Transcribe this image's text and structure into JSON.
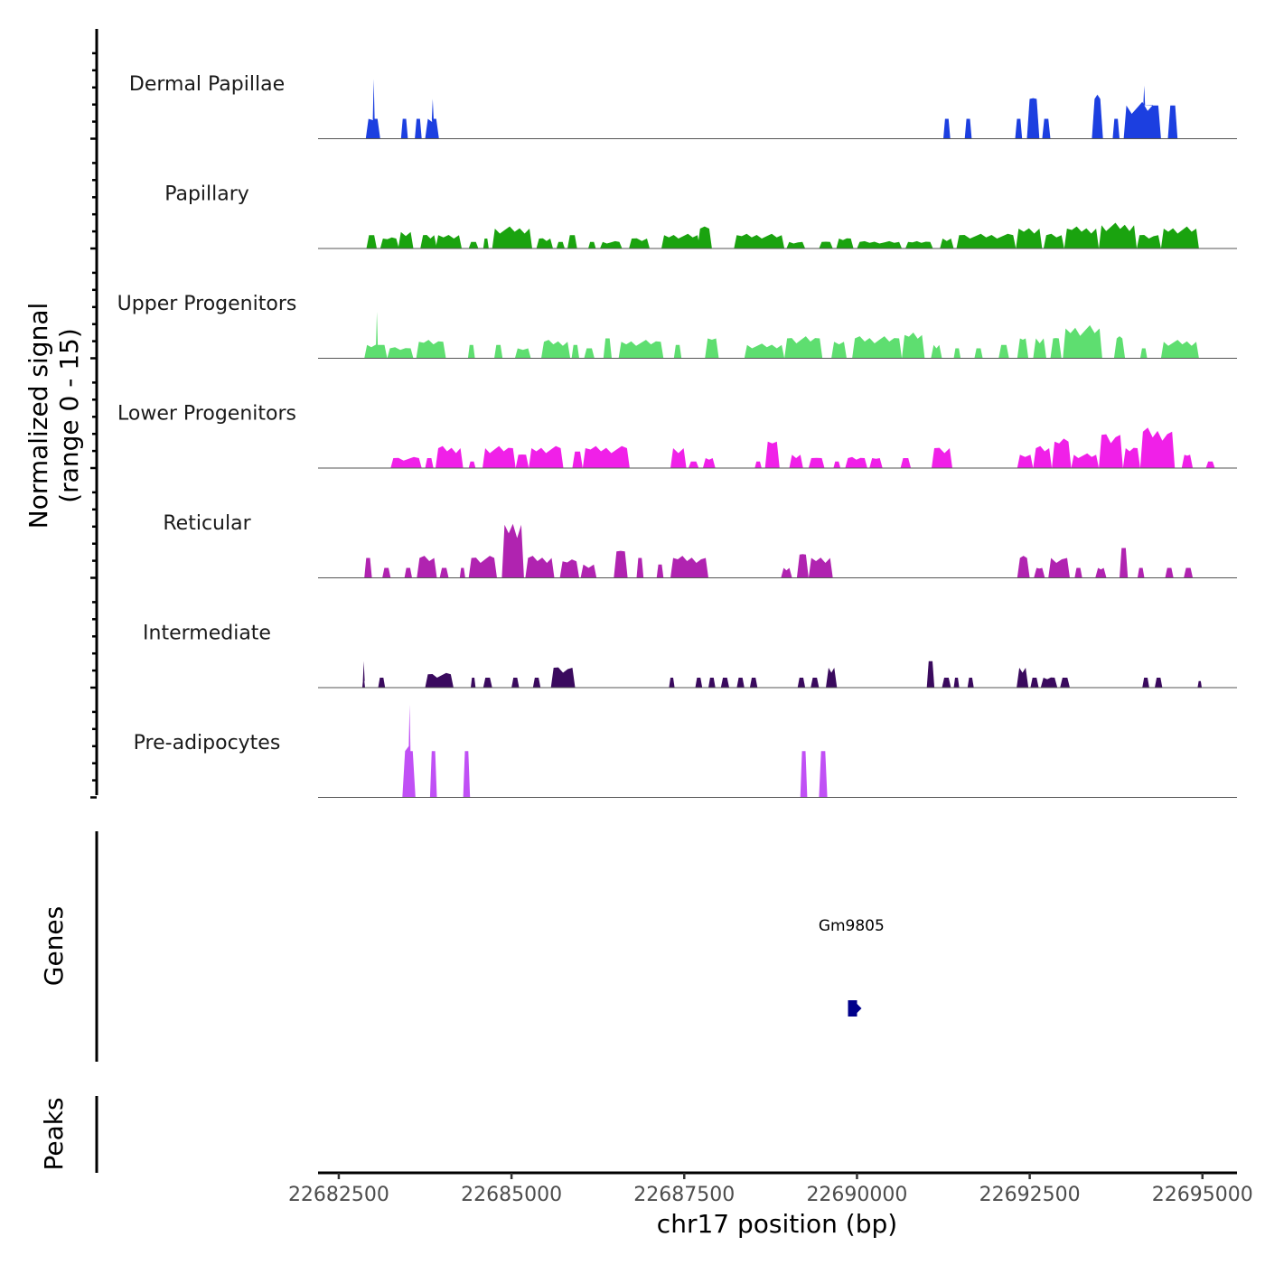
{
  "chart_data": {
    "type": "area",
    "title": "",
    "ylabel_line1": "Normalized signal",
    "ylabel_line2": "(range 0 - 15)",
    "ylim": [
      0,
      15
    ],
    "xlabel": "chr17 position (bp)",
    "xlim": [
      22682200,
      22695500
    ],
    "xticks": [
      22682500,
      22685000,
      22687500,
      22690000,
      22692500,
      22695000
    ],
    "xtick_labels": [
      "22682500",
      "22685000",
      "22687500",
      "22690000",
      "22692500",
      "22695000"
    ],
    "tracks": [
      {
        "name": "Dermal Papillae",
        "color": "#1c3fe0",
        "peaks": [
          [
            22682890,
            22683100,
            3,
            9
          ],
          [
            22683400,
            22683500,
            3,
            0
          ],
          [
            22683600,
            22683700,
            3,
            0
          ],
          [
            22683750,
            22683950,
            3,
            6
          ],
          [
            22691250,
            22691350,
            3,
            0
          ],
          [
            22691560,
            22691660,
            3,
            0
          ],
          [
            22692290,
            22692390,
            3,
            0
          ],
          [
            22692460,
            22692640,
            6,
            0
          ],
          [
            22692680,
            22692800,
            3,
            0
          ],
          [
            22693400,
            22693560,
            6,
            0
          ],
          [
            22693700,
            22693800,
            3,
            0
          ],
          [
            22693860,
            22694400,
            5,
            8
          ],
          [
            22694500,
            22694640,
            5,
            0
          ]
        ]
      },
      {
        "name": "Papillary",
        "color": "#1aa30f",
        "peaks": [
          [
            22682900,
            22683050,
            2,
            0
          ],
          [
            22683100,
            22683370,
            1.5,
            0
          ],
          [
            22683360,
            22683580,
            2.5,
            0
          ],
          [
            22683680,
            22683920,
            2,
            0
          ],
          [
            22683900,
            22684280,
            2,
            0
          ],
          [
            22684380,
            22684520,
            1,
            0
          ],
          [
            22684590,
            22684670,
            1.5,
            0
          ],
          [
            22684720,
            22685300,
            3,
            0
          ],
          [
            22685360,
            22685600,
            1.5,
            0
          ],
          [
            22685650,
            22685770,
            1,
            0
          ],
          [
            22685810,
            22685950,
            2,
            0
          ],
          [
            22686110,
            22686220,
            1,
            0
          ],
          [
            22686280,
            22686600,
            1,
            0
          ],
          [
            22686700,
            22687000,
            1.5,
            0
          ],
          [
            22687170,
            22687730,
            2,
            0
          ],
          [
            22687690,
            22687900,
            3,
            0
          ],
          [
            22688220,
            22688950,
            2,
            0
          ],
          [
            22688980,
            22689250,
            1,
            0
          ],
          [
            22689450,
            22689650,
            1,
            0
          ],
          [
            22689700,
            22689950,
            1.5,
            0
          ],
          [
            22690000,
            22690650,
            1,
            0
          ],
          [
            22690700,
            22691100,
            1,
            0
          ],
          [
            22691200,
            22691400,
            1.5,
            0
          ],
          [
            22691440,
            22692300,
            2,
            0
          ],
          [
            22692300,
            22692680,
            3,
            0
          ],
          [
            22692700,
            22693000,
            2,
            0
          ],
          [
            22693000,
            22693500,
            3,
            0
          ],
          [
            22693500,
            22694050,
            3.5,
            0
          ],
          [
            22694050,
            22694400,
            2,
            0
          ],
          [
            22694400,
            22694950,
            3,
            0
          ]
        ]
      },
      {
        "name": "Upper Progenitors",
        "color": "#5ede70",
        "peaks": [
          [
            22682870,
            22683200,
            2,
            7
          ],
          [
            22683200,
            22683580,
            1.5,
            0
          ],
          [
            22683620,
            22684050,
            2.5,
            0
          ],
          [
            22684370,
            22684470,
            2,
            0
          ],
          [
            22684750,
            22684870,
            2,
            0
          ],
          [
            22685050,
            22685280,
            1.5,
            0
          ],
          [
            22685430,
            22685850,
            2.5,
            0
          ],
          [
            22685870,
            22685980,
            2,
            0
          ],
          [
            22686050,
            22686200,
            1.5,
            0
          ],
          [
            22686330,
            22686450,
            3,
            0
          ],
          [
            22686550,
            22687200,
            2.5,
            0
          ],
          [
            22687350,
            22687460,
            2,
            0
          ],
          [
            22687800,
            22688000,
            3,
            0
          ],
          [
            22688370,
            22688950,
            2,
            0
          ],
          [
            22688950,
            22689500,
            3,
            0
          ],
          [
            22689630,
            22689850,
            2.5,
            0
          ],
          [
            22689930,
            22690650,
            3,
            0
          ],
          [
            22690650,
            22690980,
            3.5,
            0
          ],
          [
            22691070,
            22691230,
            2,
            0
          ],
          [
            22691400,
            22691500,
            1.5,
            0
          ],
          [
            22691700,
            22691820,
            1.5,
            0
          ],
          [
            22692050,
            22692200,
            2,
            0
          ],
          [
            22692320,
            22692480,
            3,
            0
          ],
          [
            22692550,
            22692740,
            3,
            0
          ],
          [
            22692800,
            22692960,
            3,
            0
          ],
          [
            22692980,
            22693550,
            4.5,
            0
          ],
          [
            22693720,
            22693880,
            3,
            0
          ],
          [
            22694100,
            22694200,
            1.5,
            0
          ],
          [
            22694400,
            22694950,
            2.5,
            0
          ]
        ]
      },
      {
        "name": "Lower Progenitors",
        "color": "#f020e8",
        "peaks": [
          [
            22683250,
            22683700,
            1.5,
            0
          ],
          [
            22683750,
            22683870,
            1.5,
            0
          ],
          [
            22683900,
            22684300,
            3,
            0
          ],
          [
            22684380,
            22684480,
            1,
            0
          ],
          [
            22684580,
            22685060,
            3,
            0
          ],
          [
            22685060,
            22685250,
            2,
            0
          ],
          [
            22685250,
            22685750,
            3,
            0
          ],
          [
            22685880,
            22686030,
            2.5,
            0
          ],
          [
            22686030,
            22686710,
            3,
            0
          ],
          [
            22687300,
            22687530,
            3,
            0
          ],
          [
            22687560,
            22687710,
            1,
            0
          ],
          [
            22687770,
            22687950,
            1.5,
            0
          ],
          [
            22688520,
            22688620,
            1,
            0
          ],
          [
            22688670,
            22688880,
            4,
            0
          ],
          [
            22689020,
            22689220,
            2,
            0
          ],
          [
            22689300,
            22689530,
            1.5,
            0
          ],
          [
            22689660,
            22689760,
            1,
            0
          ],
          [
            22689830,
            22690150,
            1.5,
            0
          ],
          [
            22690180,
            22690370,
            1.5,
            0
          ],
          [
            22690630,
            22690780,
            1.5,
            0
          ],
          [
            22691080,
            22691380,
            3,
            0
          ],
          [
            22692320,
            22692550,
            2,
            0
          ],
          [
            22692550,
            22692820,
            3,
            0
          ],
          [
            22692820,
            22693100,
            4,
            0
          ],
          [
            22693100,
            22693500,
            2,
            0
          ],
          [
            22693500,
            22693850,
            5,
            0
          ],
          [
            22693850,
            22694100,
            3,
            0
          ],
          [
            22694100,
            22694600,
            5.5,
            0
          ],
          [
            22694700,
            22694860,
            2,
            0
          ],
          [
            22695050,
            22695180,
            1,
            0
          ]
        ]
      },
      {
        "name": "Reticular",
        "color": "#b023b0",
        "peaks": [
          [
            22682870,
            22682980,
            3,
            0
          ],
          [
            22683130,
            22683250,
            1.5,
            0
          ],
          [
            22683450,
            22683560,
            1.5,
            0
          ],
          [
            22683630,
            22683920,
            3,
            0
          ],
          [
            22683960,
            22684090,
            1.5,
            0
          ],
          [
            22684250,
            22684330,
            1.5,
            0
          ],
          [
            22684380,
            22684790,
            3,
            0
          ],
          [
            22684860,
            22685180,
            8,
            0
          ],
          [
            22685200,
            22685620,
            3,
            0
          ],
          [
            22685700,
            22685980,
            2.5,
            0
          ],
          [
            22686000,
            22686230,
            2,
            0
          ],
          [
            22686480,
            22686680,
            4,
            0
          ],
          [
            22686810,
            22686910,
            3,
            0
          ],
          [
            22687100,
            22687200,
            2,
            0
          ],
          [
            22687300,
            22687850,
            3,
            0
          ],
          [
            22688900,
            22689060,
            1.5,
            0
          ],
          [
            22689130,
            22689300,
            3.5,
            0
          ],
          [
            22689300,
            22689650,
            3,
            0
          ],
          [
            22692320,
            22692500,
            3,
            0
          ],
          [
            22692560,
            22692720,
            1.5,
            0
          ],
          [
            22692770,
            22693080,
            3,
            0
          ],
          [
            22693150,
            22693260,
            1.5,
            0
          ],
          [
            22693450,
            22693610,
            1.5,
            0
          ],
          [
            22693800,
            22693920,
            4.5,
            0
          ],
          [
            22694060,
            22694160,
            1.5,
            0
          ],
          [
            22694460,
            22694580,
            1.5,
            0
          ],
          [
            22694730,
            22694860,
            1.5,
            0
          ]
        ]
      },
      {
        "name": "Intermediate",
        "color": "#3a0a5e",
        "peaks": [
          [
            22682840,
            22682880,
            1,
            4
          ],
          [
            22683070,
            22683170,
            1.5,
            0
          ],
          [
            22683750,
            22684160,
            2,
            0
          ],
          [
            22684410,
            22684480,
            1.5,
            0
          ],
          [
            22684590,
            22684720,
            1.5,
            0
          ],
          [
            22685000,
            22685110,
            1.5,
            0
          ],
          [
            22685310,
            22685420,
            1.5,
            0
          ],
          [
            22685570,
            22685920,
            3,
            0
          ],
          [
            22687280,
            22687360,
            1.5,
            0
          ],
          [
            22687660,
            22687760,
            1.5,
            0
          ],
          [
            22687850,
            22687950,
            1.5,
            0
          ],
          [
            22688030,
            22688150,
            1.5,
            0
          ],
          [
            22688260,
            22688370,
            1.5,
            0
          ],
          [
            22688450,
            22688560,
            1.5,
            0
          ],
          [
            22689140,
            22689250,
            1.5,
            0
          ],
          [
            22689330,
            22689450,
            1.5,
            0
          ],
          [
            22689550,
            22689710,
            3,
            0
          ],
          [
            22691010,
            22691120,
            4,
            0
          ],
          [
            22691230,
            22691360,
            1.5,
            0
          ],
          [
            22691400,
            22691480,
            1.5,
            0
          ],
          [
            22691600,
            22691690,
            1.5,
            0
          ],
          [
            22692310,
            22692480,
            3,
            0
          ],
          [
            22692510,
            22692630,
            1.5,
            0
          ],
          [
            22692660,
            22692900,
            1.5,
            0
          ],
          [
            22692940,
            22693080,
            1.5,
            0
          ],
          [
            22694130,
            22694230,
            1.5,
            0
          ],
          [
            22694310,
            22694420,
            1.5,
            0
          ],
          [
            22694930,
            22694990,
            1,
            0
          ]
        ]
      },
      {
        "name": "Pre-adipocytes",
        "color": "#c050f5",
        "peaks": [
          [
            22683420,
            22683610,
            7,
            14
          ],
          [
            22683820,
            22683920,
            7,
            0
          ],
          [
            22684300,
            22684400,
            7,
            0
          ],
          [
            22689180,
            22689280,
            7,
            0
          ],
          [
            22689450,
            22689570,
            7,
            0
          ]
        ]
      }
    ],
    "genes_label": "Genes",
    "genes": [
      {
        "name": "Gm9805",
        "start": 22689870,
        "end": 22689970,
        "strand": "+",
        "color": "#00008b"
      }
    ],
    "peaks_label": "Peaks"
  }
}
